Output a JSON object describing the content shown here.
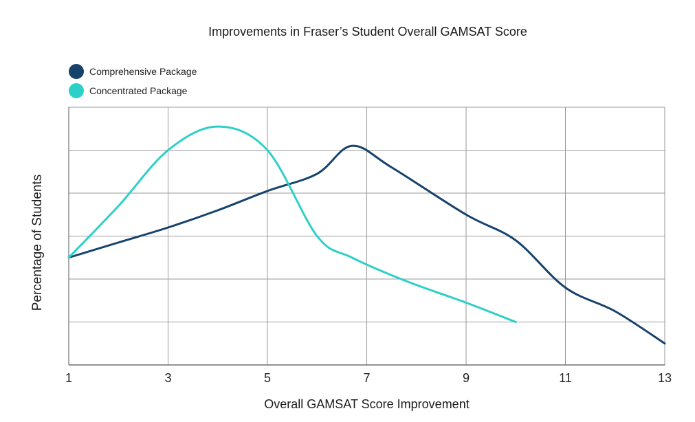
{
  "chart_data": {
    "type": "line",
    "title": "Improvements in Fraser’s Student Overall GAMSAT Score",
    "xlabel": "Overall GAMSAT Score Improvement",
    "ylabel": "Percentage of Students",
    "xlim": [
      1,
      13
    ],
    "ylim": [
      0,
      6
    ],
    "x_ticks": [
      "1",
      "3",
      "5",
      "7",
      "9",
      "11",
      "13"
    ],
    "y_ticks_labeled": false,
    "grid": true,
    "legend_position": "top-left",
    "series": [
      {
        "name": "Comprehensive Package",
        "color": "#16426B",
        "x": [
          1,
          2,
          3,
          4,
          5,
          6,
          6.7,
          7.5,
          9,
          10,
          11,
          12,
          13
        ],
        "y": [
          2.5,
          2.85,
          3.2,
          3.6,
          4.05,
          4.45,
          5.1,
          4.6,
          3.5,
          2.9,
          1.8,
          1.25,
          0.5
        ]
      },
      {
        "name": "Concentrated Package",
        "color": "#2DD0C8",
        "x": [
          1,
          2,
          3,
          4,
          5,
          6,
          6.7,
          7.8,
          9,
          10
        ],
        "y": [
          2.5,
          3.7,
          5.0,
          5.55,
          5.0,
          3.0,
          2.5,
          1.95,
          1.45,
          1.0
        ]
      }
    ]
  }
}
